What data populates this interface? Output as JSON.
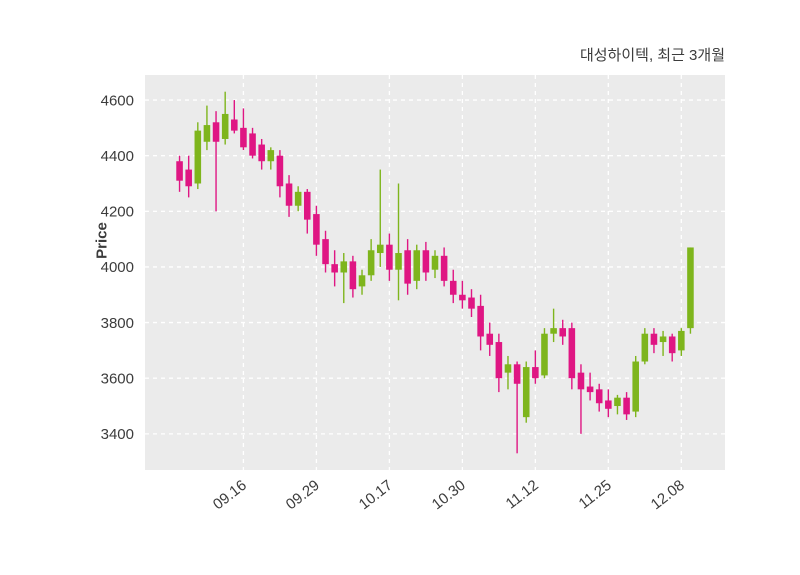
{
  "chart_data": {
    "type": "candlestick",
    "title": "대성하이텍, 최근 3개월",
    "ylabel": "Price",
    "ylim": [
      3270,
      4690
    ],
    "yticks": [
      3400,
      3600,
      3800,
      4000,
      4200,
      4400,
      4600
    ],
    "xtick_labels": [
      "09.16",
      "09.29",
      "10.17",
      "10.30",
      "11.12",
      "11.25",
      "12.08"
    ],
    "xtick_indices": [
      7,
      15,
      23,
      31,
      39,
      47,
      55
    ],
    "colors": {
      "up": "#7eb51c",
      "down": "#df1683",
      "plot_bg": "#ebebeb",
      "grid": "#ffffff",
      "text": "#3c3c3c"
    },
    "candles": [
      [
        4380,
        4400,
        4270,
        4310
      ],
      [
        4350,
        4400,
        4250,
        4290
      ],
      [
        4300,
        4520,
        4280,
        4490
      ],
      [
        4450,
        4580,
        4420,
        4510
      ],
      [
        4520,
        4560,
        4200,
        4450
      ],
      [
        4460,
        4630,
        4440,
        4550
      ],
      [
        4530,
        4600,
        4480,
        4490
      ],
      [
        4500,
        4570,
        4420,
        4430
      ],
      [
        4480,
        4500,
        4390,
        4400
      ],
      [
        4440,
        4460,
        4350,
        4380
      ],
      [
        4380,
        4430,
        4350,
        4420
      ],
      [
        4400,
        4420,
        4250,
        4290
      ],
      [
        4300,
        4330,
        4180,
        4220
      ],
      [
        4220,
        4290,
        4200,
        4270
      ],
      [
        4270,
        4280,
        4120,
        4170
      ],
      [
        4190,
        4220,
        4040,
        4080
      ],
      [
        4100,
        4130,
        3980,
        4010
      ],
      [
        4010,
        4060,
        3930,
        3980
      ],
      [
        3980,
        4050,
        3870,
        4020
      ],
      [
        4020,
        4040,
        3890,
        3920
      ],
      [
        3930,
        3990,
        3900,
        3970
      ],
      [
        3970,
        4100,
        3950,
        4060
      ],
      [
        4050,
        4350,
        4000,
        4080
      ],
      [
        4080,
        4120,
        3950,
        3990
      ],
      [
        3990,
        4300,
        3880,
        4050
      ],
      [
        4060,
        4100,
        3900,
        3940
      ],
      [
        3950,
        4080,
        3920,
        4060
      ],
      [
        4060,
        4090,
        3950,
        3980
      ],
      [
        3990,
        4060,
        3960,
        4040
      ],
      [
        4040,
        4070,
        3930,
        3950
      ],
      [
        3950,
        3990,
        3870,
        3900
      ],
      [
        3900,
        3950,
        3850,
        3880
      ],
      [
        3890,
        3920,
        3820,
        3850
      ],
      [
        3860,
        3900,
        3700,
        3750
      ],
      [
        3760,
        3800,
        3680,
        3720
      ],
      [
        3730,
        3760,
        3550,
        3600
      ],
      [
        3620,
        3680,
        3560,
        3650
      ],
      [
        3650,
        3660,
        3330,
        3580
      ],
      [
        3460,
        3660,
        3440,
        3640
      ],
      [
        3640,
        3700,
        3580,
        3600
      ],
      [
        3610,
        3780,
        3600,
        3760
      ],
      [
        3760,
        3850,
        3730,
        3780
      ],
      [
        3780,
        3810,
        3720,
        3750
      ],
      [
        3780,
        3800,
        3560,
        3600
      ],
      [
        3620,
        3650,
        3400,
        3560
      ],
      [
        3570,
        3620,
        3520,
        3550
      ],
      [
        3560,
        3580,
        3480,
        3510
      ],
      [
        3520,
        3560,
        3460,
        3490
      ],
      [
        3500,
        3540,
        3470,
        3530
      ],
      [
        3530,
        3550,
        3450,
        3470
      ],
      [
        3480,
        3680,
        3460,
        3660
      ],
      [
        3660,
        3780,
        3650,
        3760
      ],
      [
        3760,
        3780,
        3690,
        3720
      ],
      [
        3730,
        3770,
        3680,
        3750
      ],
      [
        3750,
        3760,
        3660,
        3690
      ],
      [
        3700,
        3780,
        3680,
        3770
      ],
      [
        3780,
        4070,
        3760,
        4070
      ]
    ]
  }
}
